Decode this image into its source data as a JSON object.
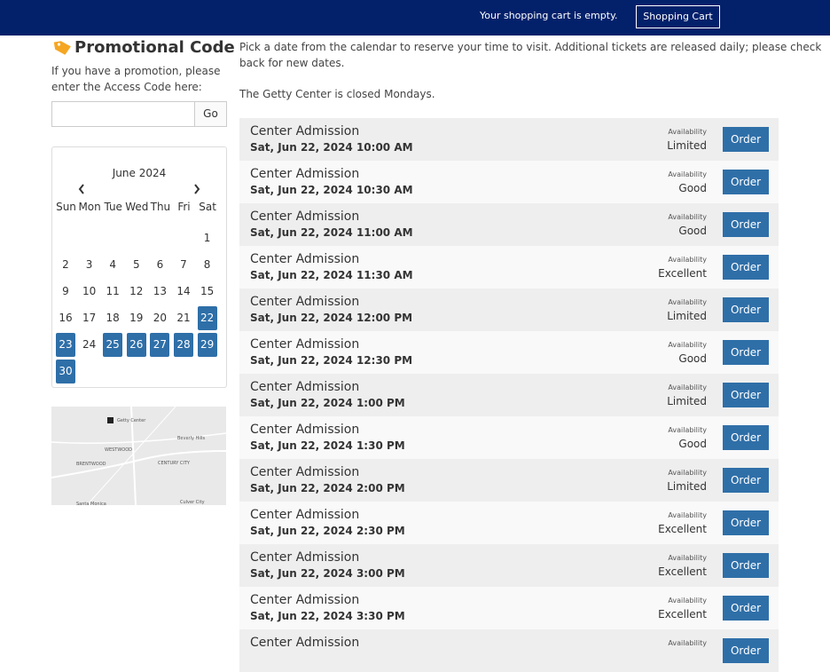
{
  "header": {
    "cart_message": "Your shopping cart is empty.",
    "cart_button": "Shopping Cart"
  },
  "sidebar": {
    "promo_title": "Promotional Code",
    "promo_text": [
      "If you have a promotion, please",
      "enter the Access Code here:"
    ],
    "go_button": "Go",
    "calendar": {
      "month": "June 2024",
      "weekdays": [
        "Sun",
        "Mon",
        "Tue",
        "Wed",
        "Thu",
        "Fri",
        "Sat"
      ],
      "weeks": [
        [
          null,
          null,
          null,
          null,
          null,
          null,
          1
        ],
        [
          2,
          3,
          4,
          5,
          6,
          7,
          8
        ],
        [
          9,
          10,
          11,
          12,
          13,
          14,
          15
        ],
        [
          16,
          17,
          18,
          19,
          20,
          21,
          22
        ],
        [
          23,
          24,
          25,
          26,
          27,
          28,
          29
        ],
        [
          30
        ]
      ],
      "available_days": [
        22,
        23,
        25,
        26,
        27,
        28,
        29,
        30
      ]
    },
    "map_labels": [
      "Getty Center",
      "BRENTWOOD",
      "WESTWOOD",
      "Beverly Hills",
      "CENTURY CITY",
      "Culver City",
      "Santa Monica"
    ]
  },
  "main": {
    "intro": [
      "Pick a date from the calendar to reserve your time to visit. Additional tickets are released daily; please check",
      "back for new dates."
    ],
    "closed_note": "The Getty Center is closed Mondays.",
    "slots": [
      {
        "title": "Center Admission",
        "datetime": "Sat, Jun 22, 2024 10:00 AM",
        "availability_label": "Availability",
        "availability": "Limited",
        "button": "Order"
      },
      {
        "title": "Center Admission",
        "datetime": "Sat, Jun 22, 2024 10:30 AM",
        "availability_label": "Availability",
        "availability": "Good",
        "button": "Order"
      },
      {
        "title": "Center Admission",
        "datetime": "Sat, Jun 22, 2024 11:00 AM",
        "availability_label": "Availability",
        "availability": "Good",
        "button": "Order"
      },
      {
        "title": "Center Admission",
        "datetime": "Sat, Jun 22, 2024 11:30 AM",
        "availability_label": "Availability",
        "availability": "Excellent",
        "button": "Order"
      },
      {
        "title": "Center Admission",
        "datetime": "Sat, Jun 22, 2024 12:00 PM",
        "availability_label": "Availability",
        "availability": "Limited",
        "button": "Order"
      },
      {
        "title": "Center Admission",
        "datetime": "Sat, Jun 22, 2024 12:30 PM",
        "availability_label": "Availability",
        "availability": "Good",
        "button": "Order"
      },
      {
        "title": "Center Admission",
        "datetime": "Sat, Jun 22, 2024 1:00 PM",
        "availability_label": "Availability",
        "availability": "Limited",
        "button": "Order"
      },
      {
        "title": "Center Admission",
        "datetime": "Sat, Jun 22, 2024 1:30 PM",
        "availability_label": "Availability",
        "availability": "Good",
        "button": "Order"
      },
      {
        "title": "Center Admission",
        "datetime": "Sat, Jun 22, 2024 2:00 PM",
        "availability_label": "Availability",
        "availability": "Limited",
        "button": "Order"
      },
      {
        "title": "Center Admission",
        "datetime": "Sat, Jun 22, 2024 2:30 PM",
        "availability_label": "Availability",
        "availability": "Excellent",
        "button": "Order"
      },
      {
        "title": "Center Admission",
        "datetime": "Sat, Jun 22, 2024 3:00 PM",
        "availability_label": "Availability",
        "availability": "Excellent",
        "button": "Order"
      },
      {
        "title": "Center Admission",
        "datetime": "Sat, Jun 22, 2024 3:30 PM",
        "availability_label": "Availability",
        "availability": "Excellent",
        "button": "Order"
      },
      {
        "title": "Center Admission",
        "availability_label": "Availability",
        "button": "Order"
      }
    ]
  }
}
